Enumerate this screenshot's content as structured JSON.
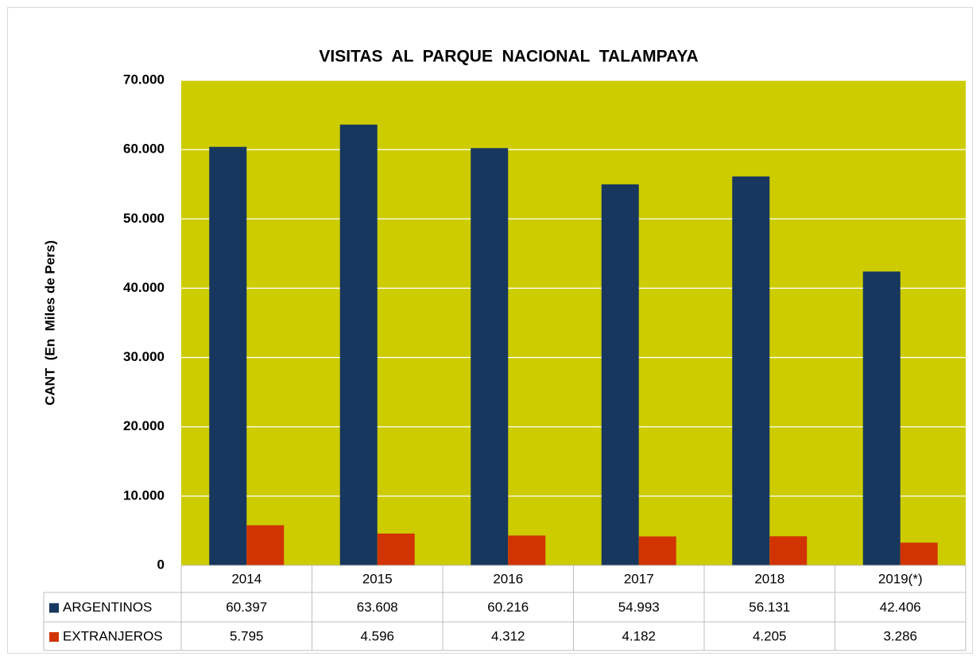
{
  "chart_data": {
    "type": "bar",
    "title": "VISITAS  AL  PARQUE  NACIONAL  TALAMPAYA",
    "y_label": "CANT  (En  Miles de Pers)",
    "categories": [
      "2014",
      "2015",
      "2016",
      "2017",
      "2018",
      "2019(*)"
    ],
    "series": [
      {
        "name": "ARGENTINOS",
        "color": "#17375e",
        "values": [
          60397,
          63608,
          60216,
          54993,
          56131,
          42406
        ],
        "value_labels": [
          "60.397",
          "63.608",
          "60.216",
          "54.993",
          "56.131",
          "42.406"
        ]
      },
      {
        "name": "EXTRANJEROS",
        "color": "#d13400",
        "values": [
          5795,
          4596,
          4312,
          4182,
          4205,
          3286
        ],
        "value_labels": [
          "5.795",
          "4.596",
          "4.312",
          "4.182",
          "4.205",
          "3.286"
        ]
      }
    ],
    "ylim": [
      0,
      70000
    ],
    "yticks": [
      0,
      {
        "value": 10000,
        "label": "10.000"
      },
      {
        "value": 20000,
        "label": "20.000"
      },
      {
        "value": 30000,
        "label": "30.000"
      },
      {
        "value": 40000,
        "label": "40.000"
      },
      {
        "value": 50000,
        "label": "50.000"
      },
      {
        "value": 60000,
        "label": "60.000"
      },
      {
        "value": 70000,
        "label": "70.000"
      }
    ],
    "grid": true,
    "plot_background": "#cccc00"
  }
}
